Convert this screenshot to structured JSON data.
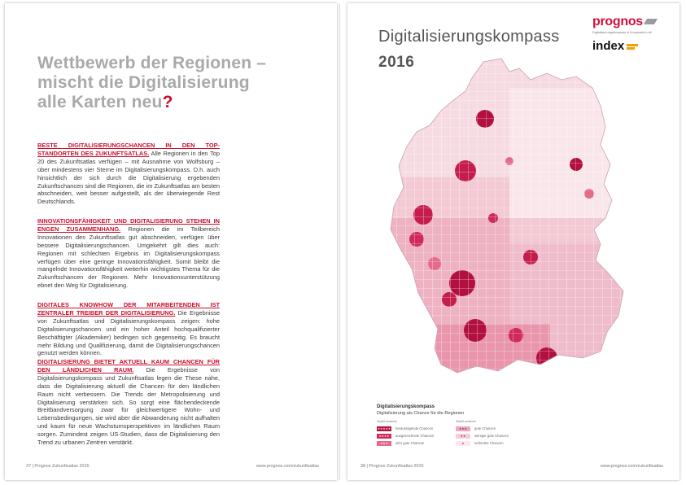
{
  "left_page": {
    "headline_lines": [
      "Wettbewerb der Regionen –",
      "mischt die Digitalisierung",
      "alle Karten neu"
    ],
    "headline_mark": "?",
    "sections": [
      {
        "lead": "Beste Digitalisierungschancen in den Top-Standorten des Zukunftsatlas.",
        "body": " Alle Regionen in den Top 20 des Zukunftsatlas verfügen – mit Ausnahme von Wolfsburg – über mindestens vier Sterne im Digitalisierungskompass. D.h. auch hinsichtlich der sich durch die Digitalisierung ergebenden Zukunftschancen sind die Regionen, die im Zukunftsatlas am besten abschneiden, weit besser aufgestellt, als der überwiegende Rest Deutschlands."
      },
      {
        "lead": "Innovationsfähigkeit und Digitalisierung stehen in engen Zusammenhang.",
        "body": " Regionen die im Teilbereich Innovationen des Zukunftsatlas gut abschneiden, verfügen über bessere Digitalisierungschancen. Umgekehrt gilt dies auch: Regionen mit schlechten Ergebnis im Digitalisierungskompass verfügen über eine geringe Innovationsfähigkeit. Somit bleibt die mangelnde Innovationsfähigkeit weiterhin wichtigstes Thema für die Zukunftschancen der Regionen. Mehr Innovationsunterstützung ebnet den Weg für Digitalisierung."
      },
      {
        "lead": "Digitales Knowhow der Mitarbeitenden ist zentraler Treiber der Digitalisierung.",
        "body": " Die Ergebnisse von Zukunftsatlas und Digitalisierungskompass zeigen: hohe Digitalisierungschancen und ein hoher Anteil hochqualifizierter Beschäftigter (Akademiker) bedingen sich gegenseitig. Es braucht mehr Bildung und Qualifizierung, damit die Digitalisierungschancen genutzt werden können."
      },
      {
        "lead": "Digitalisierung bietet aktuell kaum Chancen für den ländlichen Raum.",
        "body": " Die Ergebnisse von Digitalisierungskompass und Zukunftsatlas legen die These nahe, dass die Digitalisierung aktuell die Chancen für den ländlichen Raum nicht verbessern. Die Trends der Metropolisierung und Digitalisierung verstärken sich. So sorgt eine flächendeckende Breitbandversorgung zwar für gleichwertigere Wohn- und Lebensbedingungen, sie wird aber die Abwanderung nicht aufhalten und kaum für neue Wachstumsperspektiven im ländlichen Raum sorgen. Zumindest zeigen US-Studien, dass die Digitalisierung den Trend zu urbanen Zentren verstärkt."
      }
    ],
    "footer_left": "37 | Prognos Zukunftsatlas 2016",
    "footer_right": "www.prognos.com/zukunftsatlas"
  },
  "right_page": {
    "title": "Digitalisierungskompass",
    "year": "2016",
    "logo_prognos": "prognos",
    "logo_sub": "Digitalisierungskompass in Kooperation mit",
    "logo_index": "index",
    "legend_title": "Digitalisierungskompass",
    "legend_subtitle": "Digitalisierung als Chance für die Regionen",
    "legend_left_head": "Stadt/Landkreis",
    "legend_right_head": "Stadt/Landkreis",
    "legend_left": [
      {
        "stars": "★★★★★",
        "label": "herausragende Chancen",
        "color": "#b2103e"
      },
      {
        "stars": "★★★★",
        "label": "ausgezeichnete Chancen",
        "color": "#d02a5a"
      },
      {
        "stars": "★★★",
        "label": "sehr gute Chancen",
        "color": "#e56b8b"
      }
    ],
    "legend_right": [
      {
        "stars": "★★★",
        "label": "gute Chancen",
        "color": "#f0a9bb"
      },
      {
        "stars": "★★",
        "label": "weniger gute Chancen",
        "color": "#f6ced8"
      },
      {
        "stars": "★",
        "label": "schlechte Chancen",
        "color": "#fbe9ee"
      }
    ],
    "footer_left": "38 | Prognos Zukunftsatlas 2016",
    "footer_right": "www.prognos.com/zukunftsatlas"
  }
}
